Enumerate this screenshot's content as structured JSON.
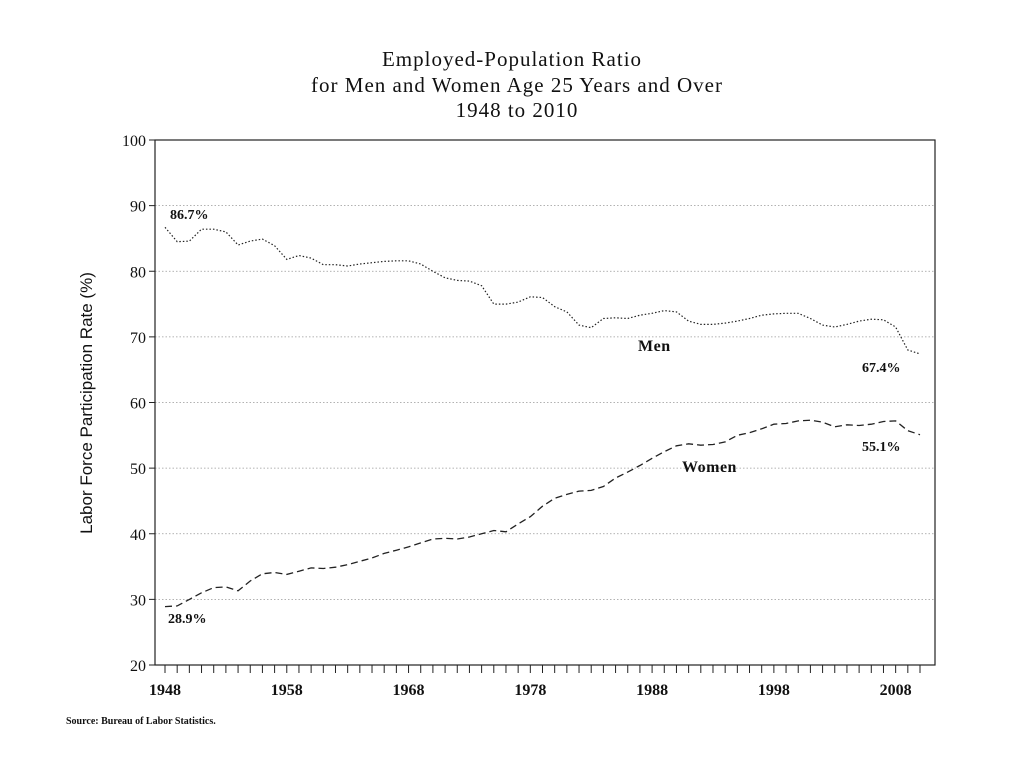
{
  "chart_data": {
    "type": "line",
    "title_lines": [
      "Employed-Population Ratio",
      "for Men and Women Age 25 Years and Over",
      "1948 to 2010"
    ],
    "xlabel": "",
    "ylabel": "Labor Force Participation Rate (%)",
    "xlim": [
      1948,
      2010
    ],
    "ylim": [
      20,
      100
    ],
    "yticks": [
      20,
      30,
      40,
      50,
      60,
      70,
      80,
      90,
      100
    ],
    "xtick_labels": [
      "1948",
      "1958",
      "1968",
      "1978",
      "1988",
      "1998",
      "2008"
    ],
    "xtick_values": [
      1948,
      1958,
      1968,
      1978,
      1988,
      1998,
      2008
    ],
    "grid": true,
    "x": [
      1948,
      1949,
      1950,
      1951,
      1952,
      1953,
      1954,
      1955,
      1956,
      1957,
      1958,
      1959,
      1960,
      1961,
      1962,
      1963,
      1964,
      1965,
      1966,
      1967,
      1968,
      1969,
      1970,
      1971,
      1972,
      1973,
      1974,
      1975,
      1976,
      1977,
      1978,
      1979,
      1980,
      1981,
      1982,
      1983,
      1984,
      1985,
      1986,
      1987,
      1988,
      1989,
      1990,
      1991,
      1992,
      1993,
      1994,
      1995,
      1996,
      1997,
      1998,
      1999,
      2000,
      2001,
      2002,
      2003,
      2004,
      2005,
      2006,
      2007,
      2008,
      2009,
      2010
    ],
    "series": [
      {
        "name": "Men",
        "style": "dotted",
        "values": [
          86.7,
          84.5,
          84.6,
          86.4,
          86.4,
          86.0,
          84.0,
          84.6,
          84.9,
          83.9,
          81.8,
          82.4,
          82.0,
          81.0,
          81.0,
          80.8,
          81.1,
          81.3,
          81.5,
          81.6,
          81.6,
          81.1,
          80.0,
          79.0,
          78.6,
          78.5,
          77.8,
          75.0,
          75.0,
          75.3,
          76.1,
          76.0,
          74.6,
          73.8,
          71.8,
          71.4,
          72.8,
          72.9,
          72.8,
          73.3,
          73.6,
          74.0,
          73.8,
          72.4,
          71.9,
          71.9,
          72.1,
          72.4,
          72.8,
          73.3,
          73.5,
          73.6,
          73.6,
          72.8,
          71.8,
          71.5,
          71.9,
          72.4,
          72.7,
          72.6,
          71.5,
          68.0,
          67.4
        ],
        "label_text": "Men",
        "start_label": "86.7%",
        "end_label": "67.4%"
      },
      {
        "name": "Women",
        "style": "dashed",
        "values": [
          28.9,
          29.0,
          30.0,
          31.0,
          31.8,
          31.9,
          31.3,
          32.8,
          33.9,
          34.1,
          33.8,
          34.3,
          34.8,
          34.7,
          34.9,
          35.3,
          35.8,
          36.3,
          37.0,
          37.5,
          38.0,
          38.6,
          39.2,
          39.3,
          39.2,
          39.5,
          40.0,
          40.5,
          40.3,
          41.5,
          42.6,
          44.2,
          45.4,
          46.0,
          46.5,
          46.6,
          47.2,
          48.5,
          49.4,
          50.4,
          51.5,
          52.5,
          53.4,
          53.7,
          53.5,
          53.6,
          54.0,
          55.0,
          55.4,
          56.0,
          56.7,
          56.8,
          57.2,
          57.3,
          57.0,
          56.3,
          56.6,
          56.5,
          56.7,
          57.1,
          57.2,
          55.7,
          55.1
        ],
        "label_text": "Women",
        "start_label": "28.9%",
        "end_label": "55.1%"
      }
    ],
    "source": "Source: Bureau of Labor Statistics."
  },
  "colors": {
    "line": "#222222",
    "grid": "#999999",
    "text": "#111111"
  }
}
